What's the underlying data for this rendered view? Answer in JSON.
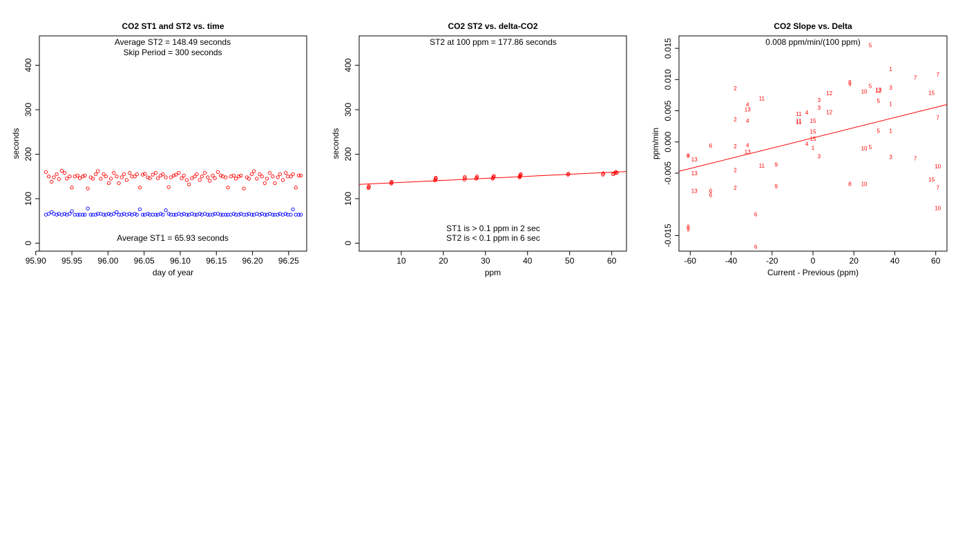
{
  "colors": {
    "st2": "#ff0000",
    "st1": "#0000ff",
    "axis": "#000000"
  },
  "chart_data": [
    {
      "type": "scatter",
      "title": "CO2 ST1 and ST2 vs. time",
      "xlabel": "day of year",
      "ylabel": "seconds",
      "xlim": [
        95.905,
        96.275
      ],
      "ylim": [
        -18,
        466
      ],
      "xticks": [
        95.9,
        95.95,
        96.0,
        96.05,
        96.1,
        96.15,
        96.2,
        96.25
      ],
      "xtick_labels": [
        "95.90",
        "95.95",
        "96.00",
        "96.05",
        "96.10",
        "96.15",
        "96.20",
        "96.25"
      ],
      "yticks": [
        0,
        100,
        200,
        300,
        400
      ],
      "ytick_labels": [
        "0",
        "100",
        "200",
        "300",
        "400"
      ],
      "annotations": [
        "Average ST2 =  148.49  seconds",
        "Skip Period =  300  seconds",
        "Average ST1 =  65.93  seconds"
      ],
      "series": [
        {
          "name": "ST2",
          "color": "#ff0000",
          "x": [
            95.914,
            95.918,
            95.922,
            95.925,
            95.929,
            95.932,
            95.936,
            95.94,
            95.943,
            95.947,
            95.95,
            95.954,
            95.958,
            95.961,
            95.965,
            95.968,
            95.972,
            95.976,
            95.979,
            95.983,
            95.986,
            95.99,
            95.994,
            95.997,
            96.001,
            96.004,
            96.008,
            96.012,
            96.015,
            96.019,
            96.022,
            96.026,
            96.03,
            96.033,
            96.037,
            96.04,
            96.044,
            96.048,
            96.051,
            96.055,
            96.058,
            96.062,
            96.066,
            96.069,
            96.073,
            96.076,
            96.08,
            96.084,
            96.087,
            96.091,
            96.094,
            96.098,
            96.102,
            96.105,
            96.109,
            96.112,
            96.116,
            96.12,
            96.123,
            96.127,
            96.13,
            96.134,
            96.138,
            96.141,
            96.145,
            96.148,
            96.152,
            96.156,
            96.159,
            96.163,
            96.166,
            96.17,
            96.174,
            96.177,
            96.181,
            96.184,
            96.188,
            96.192,
            96.195,
            96.199,
            96.202,
            96.206,
            96.21,
            96.213,
            96.217,
            96.22,
            96.224,
            96.228,
            96.231,
            96.235,
            96.238,
            96.242,
            96.246,
            96.249,
            96.253,
            96.256,
            96.26,
            96.264,
            96.267
          ],
          "y": [
            160,
            150,
            138,
            148,
            155,
            144,
            163,
            158,
            145,
            150,
            125,
            150,
            152,
            146,
            150,
            152,
            123,
            148,
            145,
            155,
            162,
            145,
            155,
            150,
            135,
            145,
            158,
            150,
            135,
            148,
            155,
            142,
            158,
            150,
            150,
            155,
            125,
            154,
            156,
            148,
            146,
            154,
            158,
            146,
            152,
            155,
            148,
            126,
            148,
            152,
            154,
            158,
            146,
            152,
            142,
            132,
            146,
            150,
            155,
            142,
            150,
            158,
            148,
            140,
            152,
            146,
            160,
            152,
            150,
            148,
            125,
            150,
            152,
            145,
            150,
            152,
            123,
            148,
            145,
            155,
            162,
            145,
            155,
            150,
            135,
            145,
            158,
            150,
            135,
            148,
            155,
            142,
            158,
            150,
            150,
            155,
            125,
            152,
            152
          ]
        },
        {
          "name": "ST1",
          "color": "#0000ff",
          "x": [
            95.914,
            95.918,
            95.922,
            95.925,
            95.929,
            95.932,
            95.936,
            95.94,
            95.943,
            95.947,
            95.95,
            95.954,
            95.958,
            95.961,
            95.965,
            95.968,
            95.972,
            95.976,
            95.979,
            95.983,
            95.986,
            95.99,
            95.994,
            95.997,
            96.001,
            96.004,
            96.008,
            96.012,
            96.015,
            96.019,
            96.022,
            96.026,
            96.03,
            96.033,
            96.037,
            96.04,
            96.044,
            96.048,
            96.051,
            96.055,
            96.058,
            96.062,
            96.066,
            96.069,
            96.073,
            96.076,
            96.08,
            96.084,
            96.087,
            96.091,
            96.094,
            96.098,
            96.102,
            96.105,
            96.109,
            96.112,
            96.116,
            96.12,
            96.123,
            96.127,
            96.13,
            96.134,
            96.138,
            96.141,
            96.145,
            96.148,
            96.152,
            96.156,
            96.159,
            96.163,
            96.166,
            96.17,
            96.174,
            96.177,
            96.181,
            96.184,
            96.188,
            96.192,
            96.195,
            96.199,
            96.202,
            96.206,
            96.21,
            96.213,
            96.217,
            96.22,
            96.224,
            96.228,
            96.231,
            96.235,
            96.238,
            96.242,
            96.246,
            96.249,
            96.253,
            96.256,
            96.26,
            96.264,
            96.267
          ],
          "y": [
            64,
            66,
            70,
            66,
            64,
            66,
            64,
            66,
            64,
            66,
            72,
            64,
            64,
            64,
            64,
            64,
            78,
            64,
            64,
            64,
            66,
            66,
            64,
            64,
            66,
            64,
            66,
            70,
            64,
            64,
            66,
            64,
            66,
            64,
            66,
            64,
            76,
            64,
            64,
            66,
            64,
            64,
            64,
            64,
            66,
            64,
            74,
            66,
            64,
            64,
            64,
            66,
            64,
            66,
            64,
            64,
            66,
            64,
            64,
            66,
            64,
            66,
            64,
            64,
            64,
            66,
            66,
            64,
            64,
            64,
            64,
            64,
            66,
            64,
            64,
            66,
            64,
            64,
            66,
            64,
            64,
            66,
            64,
            66,
            64,
            64,
            66,
            64,
            64,
            64,
            66,
            64,
            66,
            64,
            64,
            76,
            64,
            64,
            64
          ]
        }
      ]
    },
    {
      "type": "scatter",
      "title": "CO2 ST2 vs. delta-CO2",
      "xlabel": "ppm",
      "ylabel": "seconds",
      "xlim": [
        0,
        63.5
      ],
      "ylim": [
        -18,
        466
      ],
      "xticks": [
        10,
        20,
        30,
        40,
        50,
        60
      ],
      "xtick_labels": [
        "10",
        "20",
        "30",
        "40",
        "50",
        "60"
      ],
      "yticks": [
        0,
        100,
        200,
        300,
        400
      ],
      "ytick_labels": [
        "0",
        "100",
        "200",
        "300",
        "400"
      ],
      "annotations": [
        "ST2 at 100 ppm =  177.86  seconds",
        "ST1 is > 0.1 ppm in 2 sec",
        "ST2 is < 0.1 ppm in 6 sec"
      ],
      "fit_line": {
        "x": [
          0,
          63.5
        ],
        "y": [
          132,
          161
        ]
      },
      "series": [
        {
          "name": "ST2",
          "color": "#ff0000",
          "x": [
            2.2,
            2.3,
            2.3,
            7.6,
            7.7,
            7.7,
            18.0,
            18.1,
            18.2,
            18.2,
            25.0,
            25.1,
            25.1,
            27.8,
            27.9,
            28.0,
            31.7,
            31.8,
            31.9,
            32.0,
            38.1,
            38.2,
            38.2,
            38.3,
            38.4,
            49.6,
            49.7,
            57.9,
            58.0,
            60.3,
            60.6,
            60.9,
            61.0,
            61.2
          ],
          "y": [
            124,
            126,
            128,
            134,
            136,
            138,
            141,
            143,
            145,
            147,
            143,
            146,
            149,
            145,
            147,
            150,
            145,
            147,
            149,
            151,
            148,
            150,
            151,
            153,
            155,
            154,
            156,
            154,
            157,
            155,
            157,
            159,
            160,
            158
          ]
        }
      ]
    },
    {
      "type": "scatter",
      "title": "CO2 Slope vs. Delta",
      "xlabel": "Current - Previous (ppm)",
      "ylabel": "ppm/min",
      "xlim": [
        -65.5,
        65.5
      ],
      "ylim": [
        -0.0175,
        0.017
      ],
      "xticks": [
        -60,
        -40,
        -20,
        0,
        20,
        40,
        60
      ],
      "xtick_labels": [
        "-60",
        "-40",
        "-20",
        "0",
        "20",
        "40",
        "60"
      ],
      "yticks": [
        -0.015,
        -0.005,
        0.0,
        0.005,
        0.01,
        0.015
      ],
      "ytick_labels": [
        "-0.015",
        "-0.005",
        "0.000",
        "0.005",
        "0.010",
        "0.015"
      ],
      "annotations": [
        "0.008  ppm/min/(100 ppm)"
      ],
      "fit_line": {
        "x": [
          -65.5,
          65.5
        ],
        "y": [
          -0.0047,
          0.006
        ]
      },
      "series": [
        {
          "name": "points",
          "color": "#ff0000",
          "points": [
            {
              "x": -61,
              "y": -0.0022,
              "label": "8"
            },
            {
              "x": -61,
              "y": -0.0022,
              "label": "9"
            },
            {
              "x": -61,
              "y": -0.0136,
              "label": "8"
            },
            {
              "x": -61,
              "y": -0.014,
              "label": "9"
            },
            {
              "x": -58,
              "y": -0.0028,
              "label": "13"
            },
            {
              "x": -58,
              "y": -0.005,
              "label": "13"
            },
            {
              "x": -58,
              "y": -0.0078,
              "label": "13"
            },
            {
              "x": -50,
              "y": -0.0006,
              "label": "6"
            },
            {
              "x": -50,
              "y": -0.0078,
              "label": "6"
            },
            {
              "x": -50,
              "y": -0.0085,
              "label": "6"
            },
            {
              "x": -38,
              "y": 0.0086,
              "label": "2"
            },
            {
              "x": -38,
              "y": 0.0036,
              "label": "2"
            },
            {
              "x": -38,
              "y": -0.0007,
              "label": "2"
            },
            {
              "x": -38,
              "y": -0.0045,
              "label": "2"
            },
            {
              "x": -38,
              "y": -0.0073,
              "label": "2"
            },
            {
              "x": -32,
              "y": 0.006,
              "label": "4"
            },
            {
              "x": -32,
              "y": 0.0052,
              "label": "13"
            },
            {
              "x": -32,
              "y": 0.0034,
              "label": "4"
            },
            {
              "x": -32,
              "y": -0.0005,
              "label": "4"
            },
            {
              "x": -32,
              "y": -0.0016,
              "label": "13"
            },
            {
              "x": -28,
              "y": -0.0116,
              "label": "6"
            },
            {
              "x": -28,
              "y": -0.0168,
              "label": "6"
            },
            {
              "x": -25,
              "y": 0.007,
              "label": "11"
            },
            {
              "x": -25,
              "y": -0.0038,
              "label": "11"
            },
            {
              "x": -18,
              "y": -0.0036,
              "label": "9"
            },
            {
              "x": -18,
              "y": -0.0071,
              "label": "9"
            },
            {
              "x": -7,
              "y": 0.0045,
              "label": "11"
            },
            {
              "x": -7,
              "y": 0.0034,
              "label": "11"
            },
            {
              "x": -7,
              "y": 0.0032,
              "label": "11"
            },
            {
              "x": -3,
              "y": 0.0047,
              "label": "4"
            },
            {
              "x": -3,
              "y": -0.0003,
              "label": "4"
            },
            {
              "x": 0,
              "y": 0.0034,
              "label": "15"
            },
            {
              "x": 0,
              "y": 0.0017,
              "label": "15"
            },
            {
              "x": 0,
              "y": 0.0005,
              "label": "15"
            },
            {
              "x": 0,
              "y": -0.0009,
              "label": "1"
            },
            {
              "x": 3,
              "y": 0.0067,
              "label": "3"
            },
            {
              "x": 3,
              "y": 0.0055,
              "label": "3"
            },
            {
              "x": 3,
              "y": -0.0023,
              "label": "3"
            },
            {
              "x": 8,
              "y": 0.0078,
              "label": "12"
            },
            {
              "x": 8,
              "y": 0.0048,
              "label": "12"
            },
            {
              "x": 18,
              "y": 0.0096,
              "label": "8"
            },
            {
              "x": 18,
              "y": 0.0093,
              "label": "9"
            },
            {
              "x": 18,
              "y": -0.0067,
              "label": "8"
            },
            {
              "x": 25,
              "y": 0.0081,
              "label": "10"
            },
            {
              "x": 25,
              "y": -0.001,
              "label": "10"
            },
            {
              "x": 25,
              "y": -0.0067,
              "label": "10"
            },
            {
              "x": 28,
              "y": 0.0155,
              "label": "5"
            },
            {
              "x": 28,
              "y": 0.009,
              "label": "5"
            },
            {
              "x": 28,
              "y": -0.0008,
              "label": "5"
            },
            {
              "x": 32,
              "y": 0.0084,
              "label": "13"
            },
            {
              "x": 32,
              "y": 0.0082,
              "label": "12"
            },
            {
              "x": 32,
              "y": 0.0066,
              "label": "5"
            },
            {
              "x": 32,
              "y": 0.0018,
              "label": "5"
            },
            {
              "x": 38,
              "y": 0.0117,
              "label": "1"
            },
            {
              "x": 38,
              "y": 0.0087,
              "label": "3"
            },
            {
              "x": 38,
              "y": 0.0061,
              "label": "1"
            },
            {
              "x": 38,
              "y": 0.0018,
              "label": "1"
            },
            {
              "x": 38,
              "y": -0.0024,
              "label": "3"
            },
            {
              "x": 50,
              "y": 0.0103,
              "label": "7"
            },
            {
              "x": 50,
              "y": -0.0026,
              "label": "7"
            },
            {
              "x": 58,
              "y": 0.0079,
              "label": "15"
            },
            {
              "x": 58,
              "y": -0.006,
              "label": "15"
            },
            {
              "x": 61,
              "y": 0.0108,
              "label": "7"
            },
            {
              "x": 61,
              "y": 0.0039,
              "label": "7"
            },
            {
              "x": 61,
              "y": -0.0039,
              "label": "10"
            },
            {
              "x": 61,
              "y": -0.0073,
              "label": "7"
            },
            {
              "x": 61,
              "y": -0.0106,
              "label": "10"
            }
          ]
        }
      ]
    }
  ]
}
